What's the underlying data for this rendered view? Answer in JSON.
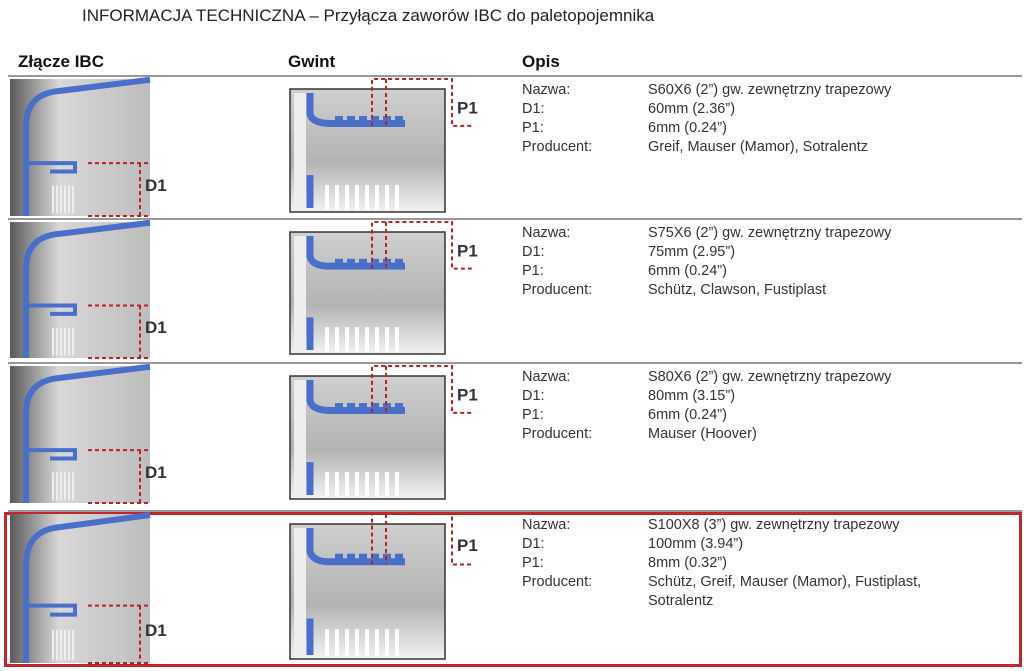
{
  "header": {
    "title": "INFORMACJA TECHNICZNA – Przyłącza zaworów IBC do paletopojemnika"
  },
  "table": {
    "columns": [
      "Złącze IBC",
      "Gwint",
      "Opis"
    ],
    "rows": [
      {
        "connector_label": "D1",
        "thread_label": "P1",
        "highlighted": false,
        "fields": [
          [
            "Nazwa:",
            "S60X6 (2”) gw. zewnętrzny trapezowy"
          ],
          [
            "D1:",
            "60mm (2.36”)"
          ],
          [
            "P1:",
            "6mm (0.24”)"
          ],
          [
            "Producent:",
            "Greif, Mauser (Mamor), Sotralentz"
          ]
        ]
      },
      {
        "connector_label": "D1",
        "thread_label": "P1",
        "highlighted": false,
        "fields": [
          [
            "Nazwa:",
            "S75X6 (2”) gw. zewnętrzny trapezowy"
          ],
          [
            "D1:",
            "75mm (2.95”)"
          ],
          [
            "P1:",
            "6mm (0.24”)"
          ],
          [
            "Producent:",
            "Schütz, Clawson, Fustiplast"
          ]
        ]
      },
      {
        "connector_label": "D1",
        "thread_label": "P1",
        "highlighted": false,
        "fields": [
          [
            "Nazwa:",
            "S80X6 (2”) gw. zewnętrzny trapezowy"
          ],
          [
            "D1:",
            "80mm (3.15”)"
          ],
          [
            "P1:",
            "6mm (0.24”)"
          ],
          [
            "Producent:",
            "Mauser (Hoover)"
          ]
        ]
      },
      {
        "connector_label": "D1",
        "thread_label": "P1",
        "highlighted": true,
        "fields": [
          [
            "Nazwa:",
            "S100X8 (3”) gw. zewnętrzny trapezowy"
          ],
          [
            "D1:",
            "100mm (3.94”)"
          ],
          [
            "P1:",
            "8mm (0.32”)"
          ],
          [
            "Producent:",
            "Schütz, Greif, Mauser (Mamor), Fustiplast, Sotralentz"
          ]
        ]
      }
    ]
  }
}
